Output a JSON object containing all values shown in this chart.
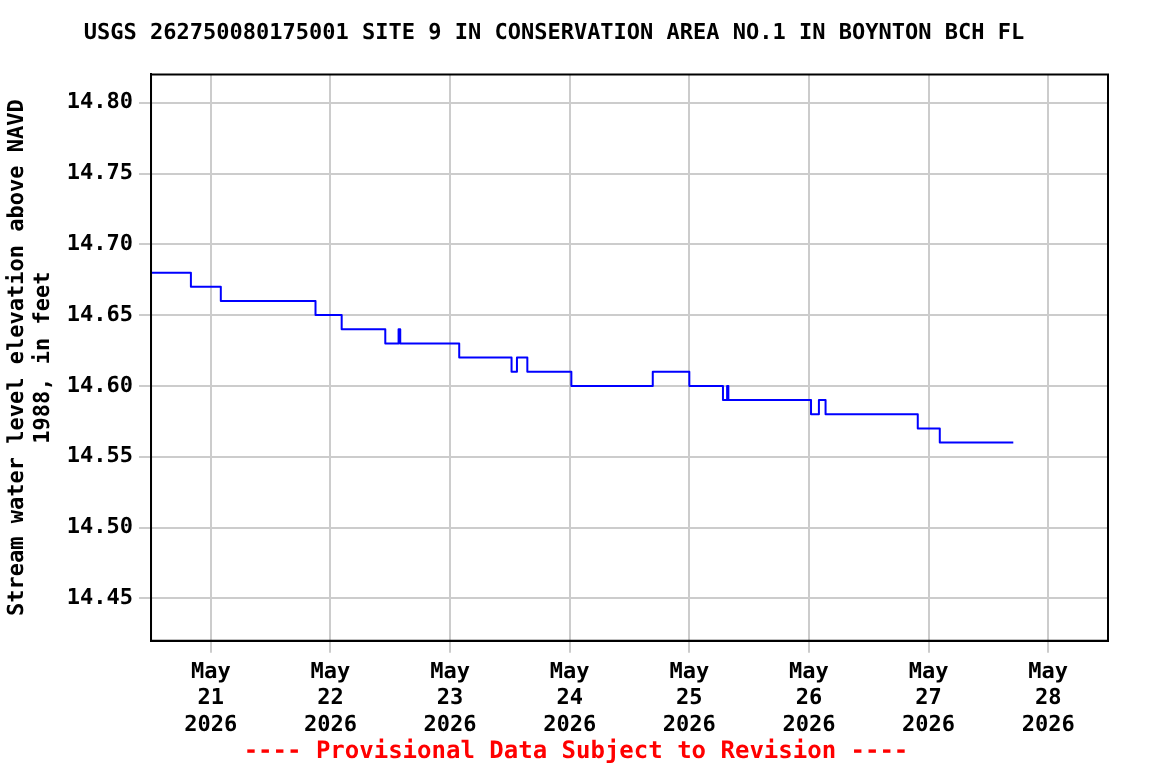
{
  "chart_data": {
    "type": "step",
    "title": "USGS 262750080175001 SITE 9 IN CONSERVATION AREA NO.1 IN BOYNTON BCH FL",
    "ylabel": "Stream water level elevation above NAVD 1988, in feet",
    "annotations": [
      "---- Provisional Data Subject to Revision ----"
    ],
    "x": [
      "2026-05-20T12:00",
      "2026-05-20T20:00",
      "2026-05-21T02:00",
      "2026-05-21T21:00",
      "2026-05-22T02:15",
      "2026-05-22T11:00",
      "2026-05-22T13:40",
      "2026-05-22T14:00",
      "2026-05-23T01:50",
      "2026-05-23T12:20",
      "2026-05-23T13:25",
      "2026-05-23T15:30",
      "2026-05-24T00:20",
      "2026-05-24T16:40",
      "2026-05-25T00:00",
      "2026-05-25T06:45",
      "2026-05-25T07:35",
      "2026-05-25T07:50",
      "2026-05-26T00:25",
      "2026-05-26T02:00",
      "2026-05-26T03:20",
      "2026-05-26T21:50",
      "2026-05-27T02:15",
      "2026-05-27T17:00"
    ],
    "series": [
      {
        "color": "#0000ff",
        "values": [
          14.68,
          14.67,
          14.66,
          14.65,
          14.64,
          14.63,
          14.64,
          14.63,
          14.62,
          14.61,
          14.62,
          14.61,
          14.6,
          14.61,
          14.6,
          14.59,
          14.6,
          14.59,
          14.58,
          14.59,
          14.58,
          14.57,
          14.56,
          14.56
        ]
      }
    ],
    "xlim": [
      "2026-05-20T12:00",
      "2026-05-28T12:00"
    ],
    "xticks": [
      {
        "value": "2026-05-21",
        "label": "May 21 2026"
      },
      {
        "value": "2026-05-22",
        "label": "May 22 2026"
      },
      {
        "value": "2026-05-23",
        "label": "May 23 2026"
      },
      {
        "value": "2026-05-24",
        "label": "May 24 2026"
      },
      {
        "value": "2026-05-25",
        "label": "May 25 2026"
      },
      {
        "value": "2026-05-26",
        "label": "May 26 2026"
      },
      {
        "value": "2026-05-27",
        "label": "May 27 2026"
      },
      {
        "value": "2026-05-28",
        "label": "May 28 2026"
      }
    ],
    "ylim": [
      14.42,
      14.82
    ],
    "yticks": [
      14.45,
      {
        "value": 14.5,
        "label": "14.50"
      },
      14.55,
      {
        "value": 14.6,
        "label": "14.60"
      },
      14.65,
      {
        "value": 14.7,
        "label": "14.70"
      },
      14.75,
      {
        "value": 14.8,
        "label": "14.80"
      }
    ],
    "grid": true,
    "legend": false
  }
}
